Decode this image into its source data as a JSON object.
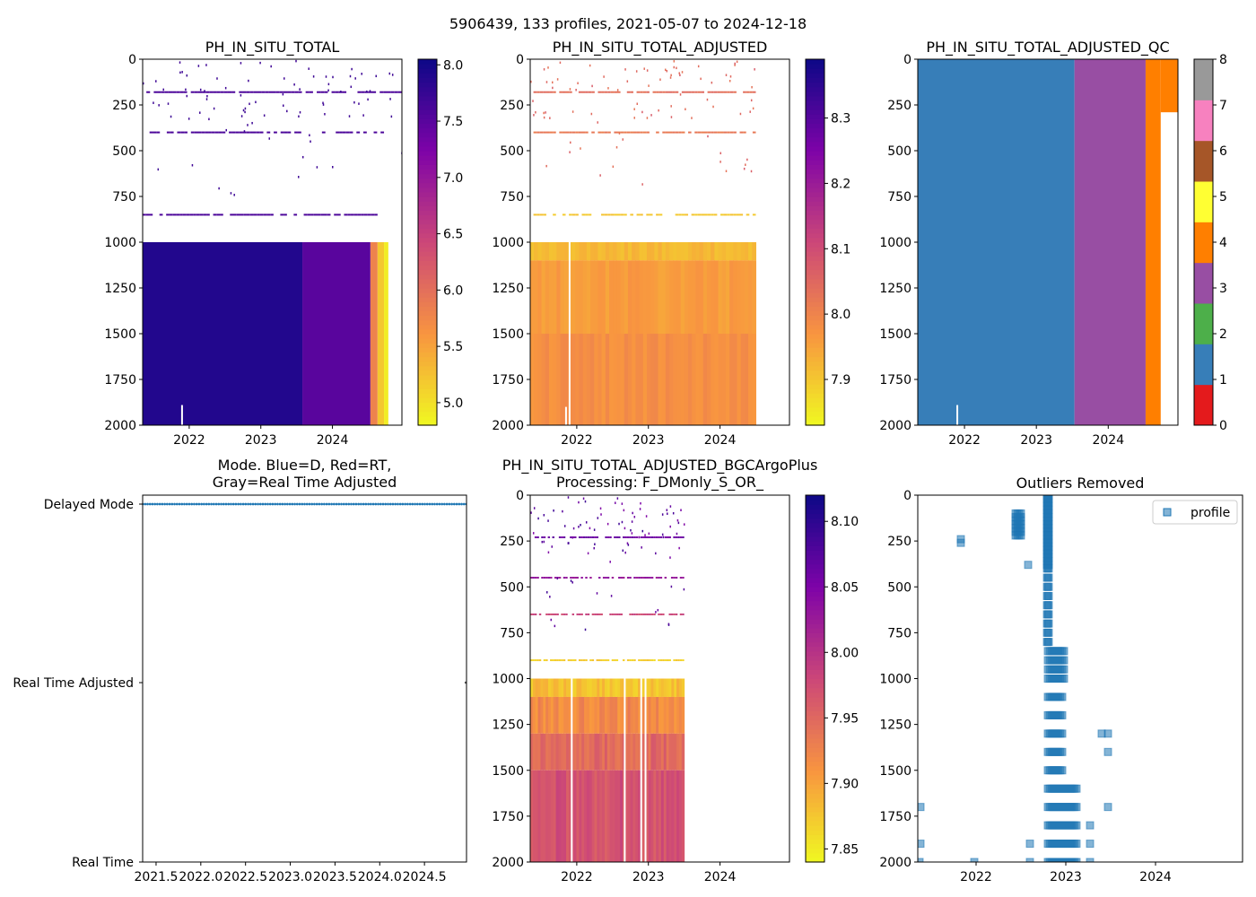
{
  "suptitle": "5906439, 133 profiles, 2021-05-07 to 2024-12-18",
  "colors": {
    "qc_blue": "#377eb8",
    "qc_purple": "#984ea3",
    "qc_orange": "#ff7f00",
    "qc_red": "#e41a1c",
    "qc_green": "#4daf4a",
    "qc_yellow": "#ffff33",
    "qc_brown": "#a65628",
    "qc_pink": "#f781bf",
    "qc_gray": "#999999",
    "mode_marker": "#1f77b4"
  },
  "chart_data": [
    {
      "id": "p1",
      "type": "heatmap",
      "title": "PH_IN_SITU_TOTAL",
      "colormap": "plasma_r",
      "xlim": [
        2021.35,
        2024.97
      ],
      "ylim": [
        2000,
        0
      ],
      "xticks": [
        "2022",
        "2023",
        "2024"
      ],
      "yticks": [
        "0",
        "250",
        "500",
        "750",
        "1000",
        "1250",
        "1500",
        "1750",
        "2000"
      ],
      "cbar": {
        "min": 4.8,
        "max": 8.05,
        "ticks": [
          "5.0",
          "5.5",
          "6.0",
          "6.5",
          "7.0",
          "7.5",
          "8.0"
        ]
      },
      "column_blocks": [
        {
          "from": 2021.35,
          "to": 2023.58,
          "value": 7.9
        },
        {
          "from": 2023.58,
          "to": 2024.53,
          "value": 7.5
        },
        {
          "from": 2024.53,
          "to": 2024.63,
          "value": 5.8
        },
        {
          "from": 2024.63,
          "to": 2024.72,
          "value": 5.2
        },
        {
          "from": 2024.72,
          "to": 2024.78,
          "value": 4.9
        }
      ],
      "deep_start": 1000,
      "deep_end": 2000,
      "depth_levels": [
        180,
        400,
        850
      ],
      "level_ends": [
        2024.97,
        2024.72,
        2024.63
      ],
      "level_value": 7.6,
      "scatter_value": 7.7,
      "gaps": [
        {
          "x": 2021.9,
          "from": 1890,
          "to": 2000
        }
      ]
    },
    {
      "id": "p2",
      "type": "heatmap",
      "title": "PH_IN_SITU_TOTAL_ADJUSTED",
      "colormap": "plasma_r",
      "xlim": [
        2021.35,
        2024.97
      ],
      "ylim": [
        2000,
        0
      ],
      "xticks": [
        "2022",
        "2023",
        "2024"
      ],
      "yticks": [
        "0",
        "250",
        "500",
        "750",
        "1000",
        "1250",
        "1500",
        "1750",
        "2000"
      ],
      "cbar": {
        "min": 7.83,
        "max": 8.39,
        "ticks": [
          "7.9",
          "8.0",
          "8.1",
          "8.2",
          "8.3"
        ]
      },
      "deep_start": 1000,
      "deep_end": 2000,
      "data_end": 2024.5,
      "deep_bands": [
        {
          "from": 1000,
          "to": 1100,
          "value": 7.92
        },
        {
          "from": 1100,
          "to": 1500,
          "value": 7.96
        },
        {
          "from": 1500,
          "to": 2000,
          "value": 7.98
        }
      ],
      "depth_levels": [
        180,
        400,
        850
      ],
      "level_values": [
        8.04,
        8.02,
        7.9
      ],
      "scatter_value": 8.05,
      "gaps": [
        {
          "x": 2021.9,
          "from": 1000,
          "to": 2000
        },
        {
          "x": 2021.85,
          "from": 1900,
          "to": 2000
        }
      ]
    },
    {
      "id": "p3",
      "type": "heatmap",
      "title": "PH_IN_SITU_TOTAL_ADJUSTED_QC",
      "colormap": "qc",
      "xlim": [
        2021.35,
        2024.97
      ],
      "ylim": [
        2000,
        0
      ],
      "xticks": [
        "2022",
        "2023",
        "2024"
      ],
      "yticks": [
        "0",
        "250",
        "500",
        "750",
        "1000",
        "1250",
        "1500",
        "1750",
        "2000"
      ],
      "cbar": {
        "min": 0,
        "max": 8,
        "ticks": [
          "0",
          "1",
          "2",
          "3",
          "4",
          "5",
          "6",
          "7",
          "8"
        ]
      },
      "column_blocks": [
        {
          "from": 2021.35,
          "to": 2023.53,
          "value": 1
        },
        {
          "from": 2023.53,
          "to": 2024.52,
          "value": 3
        },
        {
          "from": 2024.52,
          "to": 2024.73,
          "value": 4
        },
        {
          "from": 2024.73,
          "to": 2024.97,
          "value": 4,
          "to_depth": 290
        }
      ],
      "gaps": [
        {
          "x": 2021.9,
          "from": 1890,
          "to": 2000
        }
      ]
    },
    {
      "id": "p4",
      "type": "scatter",
      "title_lines": [
        "Mode. Blue=D, Red=RT,",
        "Gray=Real Time Adjusted"
      ],
      "xlim": [
        2021.35,
        2024.97
      ],
      "xticks": [
        "2021.5",
        "2022.0",
        "2022.5",
        "2023.0",
        "2023.5",
        "2024.0",
        "2024.5"
      ],
      "xtick_values": [
        2021.5,
        2022.0,
        2022.5,
        2023.0,
        2023.5,
        2024.0,
        2024.5
      ],
      "ycats": [
        "Real Time",
        "Real Time Adjusted",
        "Delayed Mode"
      ],
      "points_category": "Delayed Mode",
      "n_points": 133,
      "x_start": 2021.35,
      "x_end": 2024.97
    },
    {
      "id": "p5",
      "type": "heatmap",
      "title_lines": [
        "PH_IN_SITU_TOTAL_ADJUSTED_BGCArgoPlus",
        "Processing: F_DMonly_S_OR_"
      ],
      "colormap": "plasma_r",
      "xlim": [
        2021.35,
        2024.97
      ],
      "ylim": [
        2000,
        0
      ],
      "xticks": [
        "2022",
        "2023",
        "2024"
      ],
      "yticks": [
        "0",
        "250",
        "500",
        "750",
        "1000",
        "1250",
        "1500",
        "1750",
        "2000"
      ],
      "cbar": {
        "min": 7.84,
        "max": 8.12,
        "ticks": [
          "7.85",
          "7.90",
          "7.95",
          "8.00",
          "8.05",
          "8.10"
        ]
      },
      "deep_start": 1000,
      "deep_end": 2000,
      "data_end": 2023.5,
      "deep_bands": [
        {
          "from": 1000,
          "to": 1100,
          "value": 7.88
        },
        {
          "from": 1100,
          "to": 1300,
          "value": 7.92
        },
        {
          "from": 1300,
          "to": 1500,
          "value": 7.95
        },
        {
          "from": 1500,
          "to": 2000,
          "value": 7.97
        }
      ],
      "depth_levels": [
        230,
        450,
        650,
        900
      ],
      "level_values": [
        8.06,
        8.03,
        7.98,
        7.87
      ],
      "scatter_value": 8.07,
      "gaps": [
        {
          "x": 2022.67,
          "from": 1000,
          "to": 2000
        },
        {
          "x": 2022.9,
          "from": 1000,
          "to": 2000
        },
        {
          "x": 2022.96,
          "from": 1000,
          "to": 2000
        },
        {
          "x": 2021.93,
          "from": 1000,
          "to": 2000
        }
      ]
    },
    {
      "id": "p6",
      "type": "scatter",
      "title": "Outliers Removed",
      "xlim": [
        2021.35,
        2024.97
      ],
      "ylim": [
        2000,
        0
      ],
      "xticks": [
        "2022",
        "2023",
        "2024"
      ],
      "yticks": [
        "0",
        "250",
        "500",
        "750",
        "1000",
        "1250",
        "1500",
        "1750",
        "2000"
      ],
      "legend": "profile",
      "legend_position": "top-right",
      "points": [
        [
          2021.38,
          1700
        ],
        [
          2021.38,
          1900
        ],
        [
          2021.37,
          2000
        ],
        [
          2021.83,
          240
        ],
        [
          2021.83,
          260
        ],
        [
          2021.98,
          2000
        ],
        [
          2022.58,
          380
        ],
        [
          2022.6,
          1900
        ],
        [
          2022.6,
          2000
        ],
        [
          2023.27,
          1800
        ],
        [
          2023.27,
          1900
        ],
        [
          2023.27,
          2000
        ],
        [
          2023.4,
          1300
        ],
        [
          2023.47,
          1300
        ],
        [
          2023.47,
          1400
        ],
        [
          2023.47,
          1700
        ]
      ],
      "column_clusters": [
        {
          "x_from": 2022.44,
          "x_to": 2022.5,
          "depths": [
            100,
            120,
            140,
            160,
            180,
            200,
            220
          ]
        },
        {
          "x_from": 2022.79,
          "x_to": 2022.81,
          "depths": [
            0,
            20,
            40,
            60,
            80,
            100,
            120,
            140,
            160,
            180,
            200,
            220,
            240,
            260,
            280,
            300,
            320,
            340,
            360,
            380,
            400,
            450,
            500,
            550,
            600,
            650,
            700,
            750,
            800
          ]
        },
        {
          "x_from": 2022.8,
          "x_to": 2022.98,
          "depths": [
            850,
            900,
            950,
            1000
          ]
        },
        {
          "x_from": 2022.8,
          "x_to": 2022.96,
          "depths": [
            1100,
            1200,
            1300,
            1400,
            1500
          ]
        },
        {
          "x_from": 2022.8,
          "x_to": 2023.12,
          "depths": [
            1600,
            1700,
            1800,
            1900,
            2000
          ]
        }
      ]
    }
  ]
}
